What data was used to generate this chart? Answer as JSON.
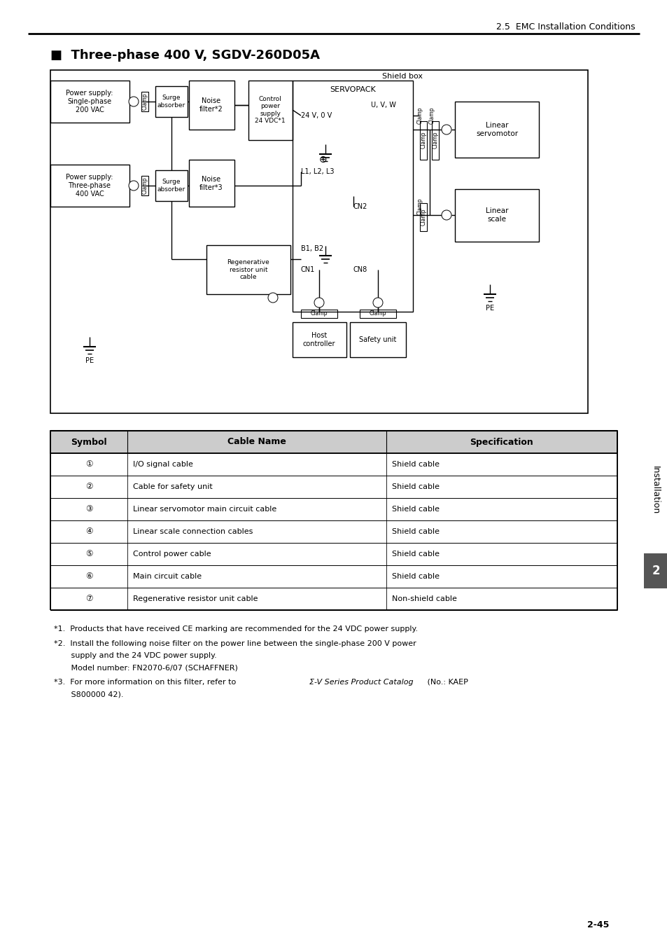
{
  "page_header": "2.5  EMC Installation Conditions",
  "title": "■  Three-phase 400 V, SGDV-260D05A",
  "shield_box_label": "Shield box",
  "page_number": "2-45",
  "bg_color": "#ffffff",
  "text_color": "#000000",
  "table_rows": [
    [
      "①",
      "I/O signal cable",
      "Shield cable"
    ],
    [
      "②",
      "Cable for safety unit",
      "Shield cable"
    ],
    [
      "③",
      "Linear servomotor main circuit cable",
      "Shield cable"
    ],
    [
      "④",
      "Linear scale connection cables",
      "Shield cable"
    ],
    [
      "⑤",
      "Control power cable",
      "Shield cable"
    ],
    [
      "⑥",
      "Main circuit cable",
      "Shield cable"
    ],
    [
      "⑦",
      "Regenerative resistor unit cable",
      "Non-shield cable"
    ]
  ],
  "fn1": "*1.  Products that have received CE marking are recommended for the 24 VDC power supply.",
  "fn2a": "*2.  Install the following noise filter on the power line between the single-phase 200 V power",
  "fn2b": "       supply and the 24 VDC power supply.",
  "fn2c": "       Model number: FN2070-6/07 (SCHAFFNER)",
  "fn3a": "*3.  For more information on this filter, refer to Σ-V Series Product Catalog (No.: KAEP",
  "fn3b": "       S800000 42)."
}
